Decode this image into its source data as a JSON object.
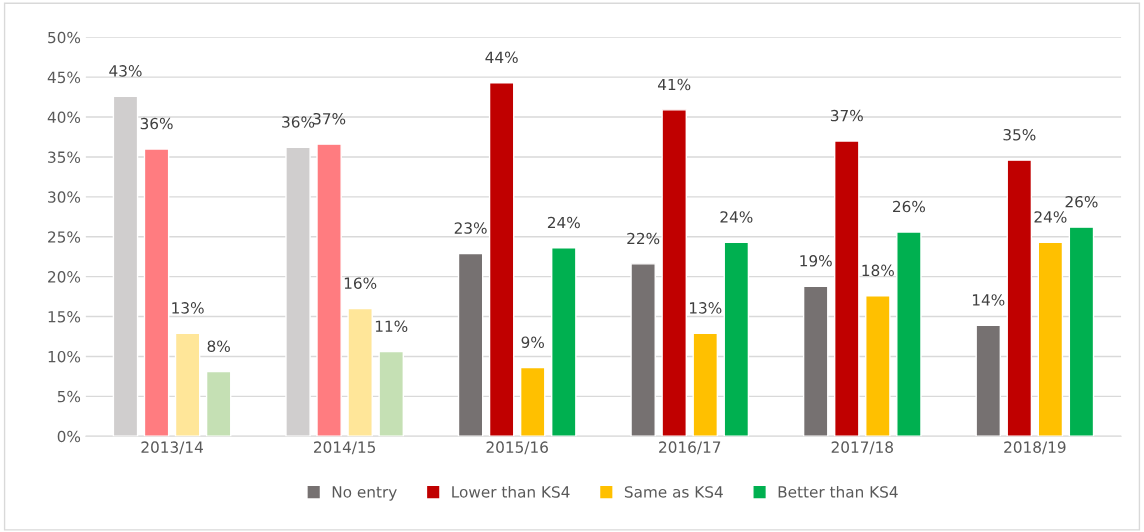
{
  "chart_data": {
    "type": "bar",
    "categories": [
      "2013/14",
      "2014/15",
      "2015/16",
      "2016/17",
      "2017/18",
      "2018/19"
    ],
    "series": [
      {
        "name": "No entry",
        "color": "#767171",
        "colors": [
          "#d0cece",
          "#d0cece",
          "#767171",
          "#767171",
          "#767171",
          "#767171"
        ],
        "values": [
          42.6,
          36.2,
          22.9,
          21.6,
          18.8,
          13.9
        ],
        "value_labels": [
          "43%",
          "36%",
          "23%",
          "22%",
          "19%",
          "14%"
        ]
      },
      {
        "name": "Lower than KS4",
        "color": "#c00000",
        "colors": [
          "#ff7c80",
          "#ff7c80",
          "#c00000",
          "#c00000",
          "#c00000",
          "#c00000"
        ],
        "values": [
          36.0,
          36.6,
          44.3,
          40.9,
          37.0,
          34.6
        ],
        "value_labels": [
          "36%",
          "37%",
          "44%",
          "41%",
          "37%",
          "35%"
        ]
      },
      {
        "name": "Same as KS4",
        "color": "#ffc000",
        "colors": [
          "#ffe699",
          "#ffe699",
          "#ffc000",
          "#ffc000",
          "#ffc000",
          "#ffc000"
        ],
        "values": [
          12.9,
          16.0,
          8.6,
          12.9,
          17.6,
          24.3
        ],
        "value_labels": [
          "13%",
          "16%",
          "9%",
          "13%",
          "18%",
          "24%"
        ]
      },
      {
        "name": "Better than KS4",
        "color": "#00b050",
        "colors": [
          "#c5e0b4",
          "#c5e0b4",
          "#00b050",
          "#00b050",
          "#00b050",
          "#00b050"
        ],
        "values": [
          8.1,
          10.6,
          23.6,
          24.3,
          25.6,
          26.2
        ],
        "value_labels": [
          "8%",
          "11%",
          "24%",
          "24%",
          "26%",
          "26%"
        ]
      }
    ],
    "ylim": [
      0,
      50
    ],
    "yticks": [
      {
        "value": 0,
        "label": "0%"
      },
      {
        "value": 5,
        "label": "5%"
      },
      {
        "value": 10,
        "label": "10%"
      },
      {
        "value": 15,
        "label": "15%"
      },
      {
        "value": 20,
        "label": "20%"
      },
      {
        "value": 25,
        "label": "25%"
      },
      {
        "value": 30,
        "label": "30%"
      },
      {
        "value": 35,
        "label": "35%"
      },
      {
        "value": 40,
        "label": "40%"
      },
      {
        "value": 45,
        "label": "45%"
      },
      {
        "value": 50,
        "label": "50%"
      }
    ],
    "grid": "y",
    "legend": "bottom"
  }
}
